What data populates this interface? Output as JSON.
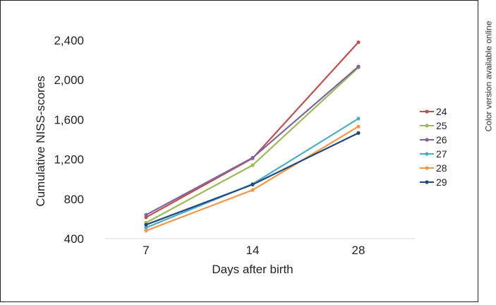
{
  "side_note": "Color version available online",
  "chart_data": {
    "type": "line",
    "xlabel": "Days after birth",
    "ylabel": "Cumulative NISS-scores",
    "categories": [
      "7",
      "14",
      "28"
    ],
    "yticks": [
      "400",
      "800",
      "1,200",
      "1,600",
      "2,000",
      "2,400"
    ],
    "ylim": [
      400,
      2400
    ],
    "grid": false,
    "legend_position": "right",
    "series": [
      {
        "name": "24",
        "color": "#c0504d",
        "values": [
          615,
          1210,
          2380
        ]
      },
      {
        "name": "25",
        "color": "#9bbb59",
        "values": [
          560,
          1140,
          2125
        ]
      },
      {
        "name": "26",
        "color": "#8064a2",
        "values": [
          640,
          1215,
          2135
        ]
      },
      {
        "name": "27",
        "color": "#4bacc6",
        "values": [
          510,
          950,
          1610
        ]
      },
      {
        "name": "28",
        "color": "#f79646",
        "values": [
          480,
          890,
          1530
        ]
      },
      {
        "name": "29",
        "color": "#1f497d",
        "values": [
          540,
          945,
          1465
        ]
      }
    ]
  }
}
